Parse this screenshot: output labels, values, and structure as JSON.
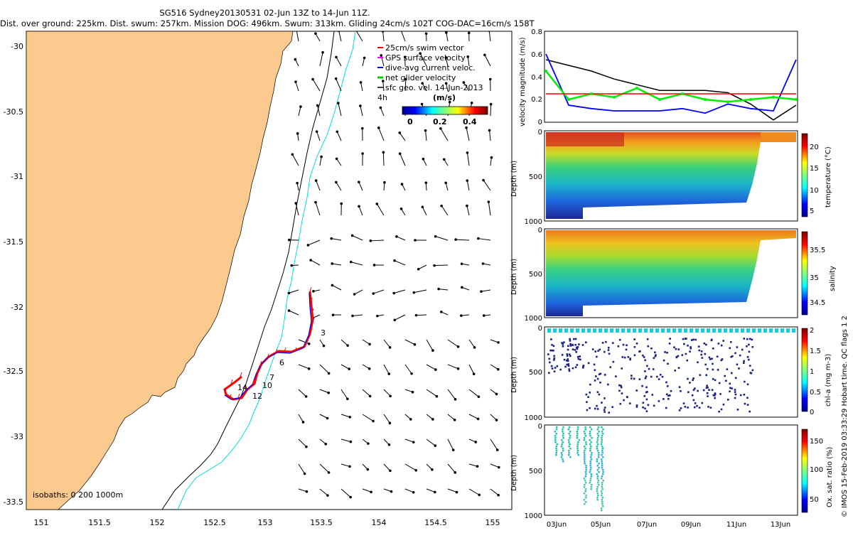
{
  "header": {
    "title": "SG516 Sydney20130531 02-Jun 13Z to 14-Jun 11Z.",
    "summary": "Dist. over ground: 225km. Dist. swum: 257km. Mission DOG: 496km. Swum: 313km. Gliding 24cm/s 102T COG-DAC=16cm/s 158T"
  },
  "map": {
    "x_ticks": [
      "151",
      "151.5",
      "152",
      "152.5",
      "153",
      "153.5",
      "154",
      "154.5",
      "155"
    ],
    "y_ticks": [
      "-30",
      "-30.5",
      "-31",
      "-31.5",
      "-32",
      "-32.5",
      "-33",
      "-33.5"
    ],
    "legend": [
      {
        "label": "25cm/s swim vector",
        "color": "#ff0000"
      },
      {
        "label": "GPS surface velocity",
        "color": "#ff00ff"
      },
      {
        "label": "dive-avg current veloc.",
        "color": "#0000ff"
      },
      {
        "label": "net glider velocity",
        "color": "#00cc00"
      },
      {
        "label": "sfc geo. vel. 14-Jun-2013",
        "color": "#000000"
      }
    ],
    "legend_prefix": "4h",
    "colorbar_title": "(m/s)",
    "colorbar_ticks": [
      "0",
      "0.2",
      "0.4"
    ],
    "isobaths_label": "isobaths: 0   200  1000m",
    "track_labels": [
      "3",
      "6",
      "7",
      "10",
      "12",
      "14"
    ],
    "land_color": "#fcc98f",
    "track_color": "#ff0000",
    "dac_color": "#0000ff"
  },
  "panels": {
    "velocity": {
      "ylabel": "velocity magnitude (m/s)",
      "y_ticks": [
        "0",
        "0.2",
        "0.4",
        "0.6",
        "0.8"
      ]
    },
    "depth_ylabel": "Depth (m)",
    "depth_ticks": [
      "0",
      "500",
      "1000"
    ],
    "temperature": {
      "label": "temperature (°C)",
      "ticks": [
        "5",
        "10",
        "15",
        "20"
      ]
    },
    "salinity": {
      "label": "salinity",
      "ticks": [
        "34.5",
        "35",
        "35.5"
      ]
    },
    "chla": {
      "label": "chl-a (mg m-3)",
      "ticks": [
        "0",
        "0.5",
        "1",
        "1.5",
        "2"
      ]
    },
    "oxygen": {
      "label": "Ox. sat. ratio (%)",
      "ticks": [
        "50",
        "100",
        "150"
      ]
    },
    "x_ticks": [
      "03Jun",
      "05Jun",
      "07Jun",
      "09Jun",
      "11Jun",
      "13Jun"
    ],
    "side_caption": "© IMOS 15-Feb-2019 03:33:29 Hobart time. QC flags 1  2"
  },
  "chart_data": [
    {
      "type": "line",
      "title": "",
      "xlabel": "",
      "ylabel": "velocity magnitude (m/s)",
      "ylim": [
        0,
        0.8
      ],
      "x": [
        "03Jun",
        "04Jun",
        "05Jun",
        "06Jun",
        "07Jun",
        "08Jun",
        "09Jun",
        "10Jun",
        "11Jun",
        "12Jun",
        "13Jun",
        "14Jun"
      ],
      "series": [
        {
          "values": [
            0.55,
            0.5,
            0.45,
            0.38,
            0.33,
            0.28,
            0.28,
            0.28,
            0.26,
            0.16,
            0.02,
            0.15
          ]
        },
        {
          "values": [
            0.6,
            0.15,
            0.12,
            0.1,
            0.1,
            0.1,
            0.12,
            0.08,
            0.16,
            0.12,
            0.1,
            0.55
          ]
        },
        {
          "values": [
            0.45,
            0.2,
            0.25,
            0.22,
            0.3,
            0.2,
            0.25,
            0.2,
            0.18,
            0.2,
            0.22,
            0.2
          ]
        },
        {
          "values": [
            0.25,
            0.25,
            0.25,
            0.25,
            0.25,
            0.25,
            0.25,
            0.25,
            0.25,
            0.25,
            0.25,
            0.25
          ]
        }
      ]
    }
  ]
}
